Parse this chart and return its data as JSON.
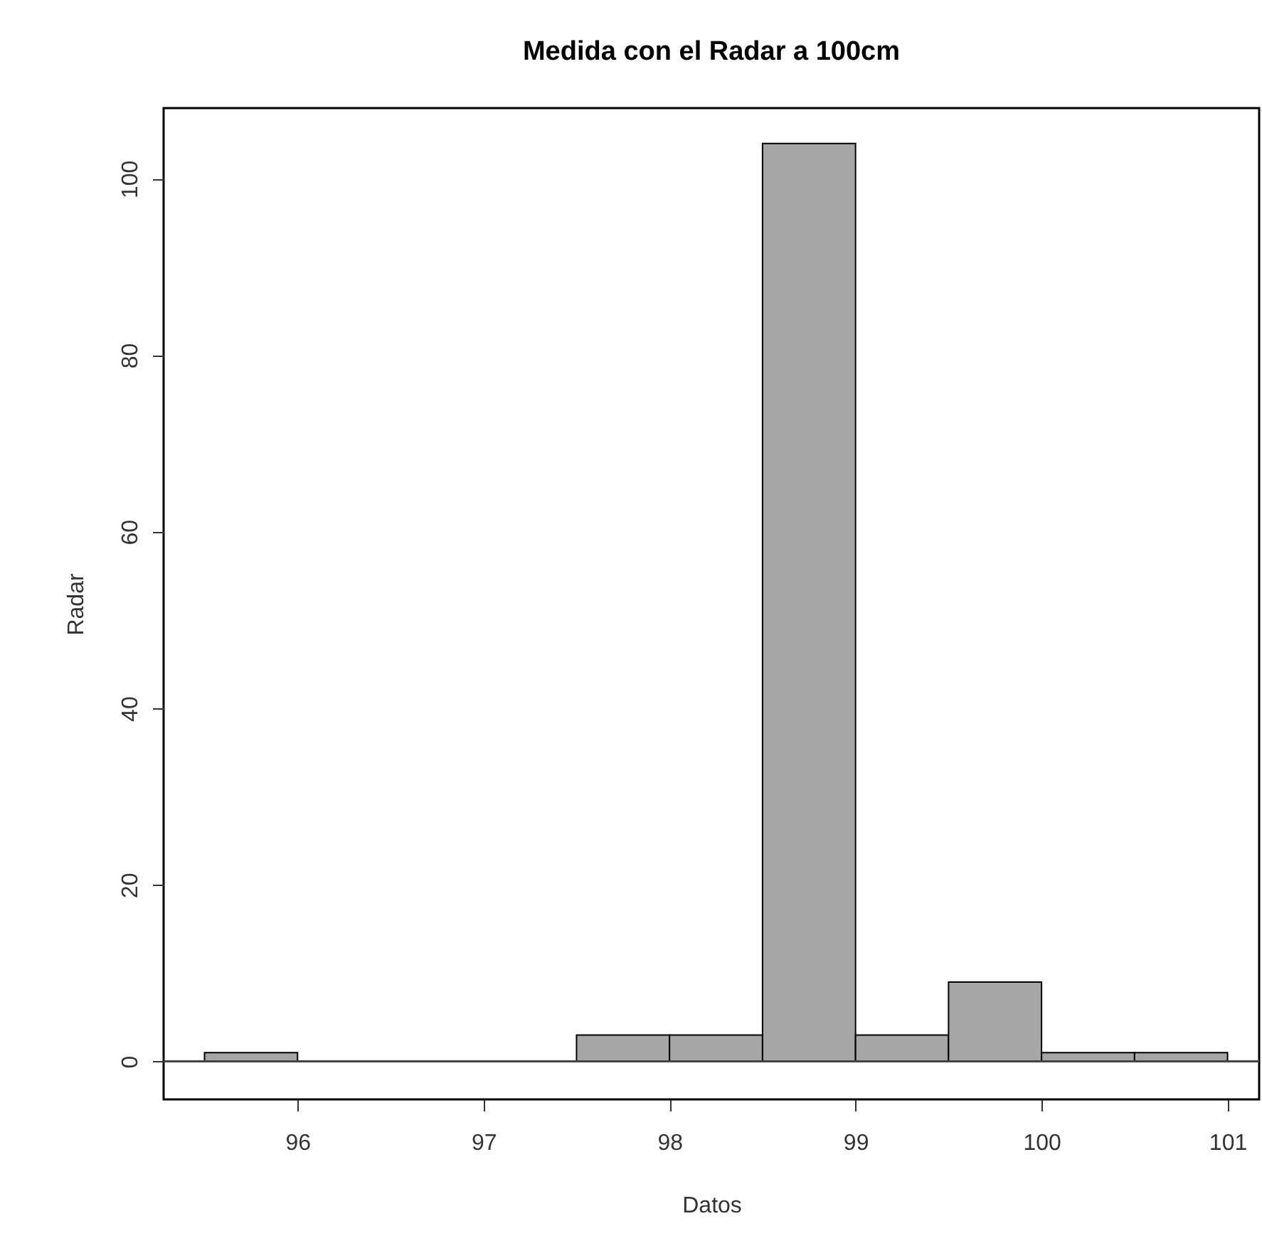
{
  "chart_data": {
    "type": "histogram",
    "title": "Medida con el Radar a 100cm",
    "xlabel": "Datos",
    "ylabel": "Radar",
    "bins": [
      95.5,
      96,
      96.5,
      97,
      97.5,
      98,
      98.5,
      99,
      99.5,
      100,
      100.5,
      101
    ],
    "values": [
      1,
      0,
      0,
      0,
      3,
      3,
      104,
      3,
      9,
      1,
      1
    ],
    "color": "#a6a6a6",
    "xlim": [
      95.28,
      101.17
    ],
    "xticks": [
      96,
      97,
      98,
      99,
      100,
      101
    ],
    "ylim": [
      -4.3,
      108
    ],
    "yticks": [
      0,
      20,
      40,
      60,
      80,
      100
    ],
    "ref_lines": [
      {
        "axis": "y",
        "value": 0,
        "color": "#444444"
      }
    ],
    "grid": false
  }
}
